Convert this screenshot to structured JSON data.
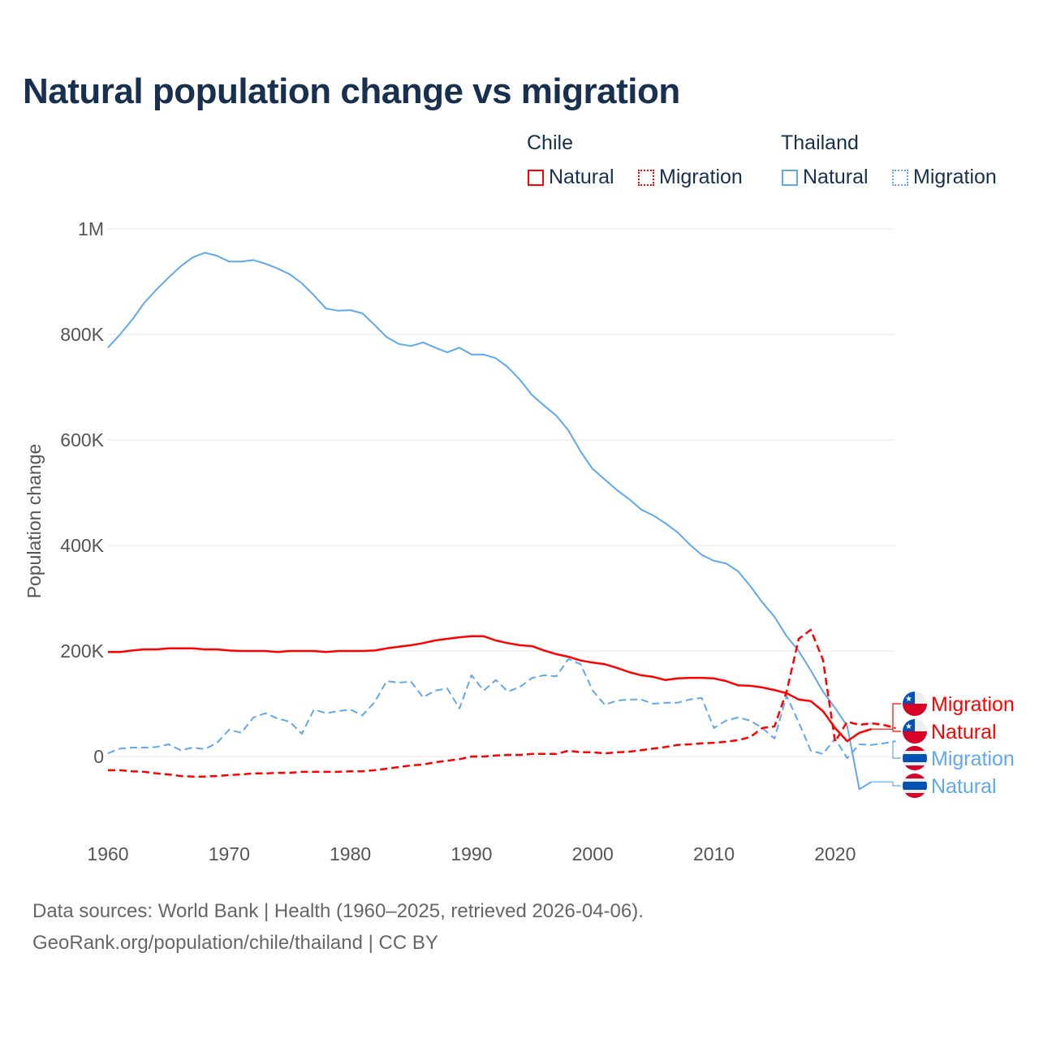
{
  "chart_data": {
    "type": "line",
    "title": "Natural population change vs migration",
    "ylabel": "Population change",
    "xlabel": "",
    "xlim": [
      1960,
      2025
    ],
    "ylim": [
      -100000,
      1000000
    ],
    "x_ticks": [
      "1960",
      "1970",
      "1980",
      "1990",
      "2000",
      "2010",
      "2020"
    ],
    "y_ticks": [
      {
        "v": 0,
        "label": "0"
      },
      {
        "v": 200000,
        "label": "200K"
      },
      {
        "v": 400000,
        "label": "400K"
      },
      {
        "v": 600000,
        "label": "600K"
      },
      {
        "v": 800000,
        "label": "800K"
      },
      {
        "v": 1000000,
        "label": "1M"
      }
    ],
    "grid": true,
    "legend": {
      "placement": "top-right",
      "groups": [
        {
          "name": "Chile",
          "items": [
            "Natural",
            "Migration"
          ]
        },
        {
          "name": "Thailand",
          "items": [
            "Natural",
            "Migration"
          ]
        }
      ]
    },
    "colors": {
      "Chile": "#ff0000",
      "Thailand": "#5fa8ee"
    },
    "start_year": 1960,
    "series": [
      {
        "name": "Thailand Natural",
        "country": "Thailand",
        "kind": "Natural",
        "label": "Natural",
        "values": [
          775000,
          800000,
          828000,
          860000,
          885000,
          908000,
          929000,
          946000,
          955000,
          949000,
          938000,
          938000,
          941000,
          934000,
          925000,
          914000,
          897000,
          874000,
          849000,
          845000,
          846000,
          840000,
          818000,
          795000,
          782000,
          778000,
          785000,
          775000,
          766000,
          775000,
          762000,
          762000,
          755000,
          738000,
          714000,
          685000,
          665000,
          646000,
          618000,
          578000,
          545000,
          525000,
          505000,
          488000,
          468000,
          457000,
          442000,
          425000,
          402000,
          382000,
          371000,
          366000,
          351000,
          323000,
          292000,
          265000,
          228000,
          200000,
          163000,
          123000,
          92000,
          58000,
          -62000,
          -48000
        ]
      },
      {
        "name": "Thailand Migration",
        "country": "Thailand",
        "kind": "Migration",
        "label": "Migration",
        "values": [
          6000,
          15000,
          17000,
          17000,
          18000,
          23000,
          12000,
          17000,
          14000,
          26000,
          51000,
          45000,
          74000,
          82000,
          72000,
          66000,
          43000,
          89000,
          82000,
          86000,
          89000,
          78000,
          103000,
          143000,
          140000,
          142000,
          112000,
          125000,
          129000,
          91000,
          154000,
          125000,
          145000,
          123000,
          132000,
          149000,
          154000,
          152000,
          185000,
          175000,
          125000,
          98000,
          106000,
          108000,
          108000,
          100000,
          102000,
          102000,
          108000,
          111000,
          54000,
          68000,
          74000,
          68000,
          54000,
          34000,
          115000,
          65000,
          11000,
          5000,
          34000,
          -3000,
          23000,
          22000,
          25000,
          29000
        ]
      },
      {
        "name": "Chile Natural",
        "country": "Chile",
        "kind": "Natural",
        "label": "Natural",
        "values": [
          198000,
          198000,
          201000,
          203000,
          203000,
          205000,
          205000,
          205000,
          203000,
          203000,
          201000,
          200000,
          200000,
          200000,
          198000,
          200000,
          200000,
          200000,
          198000,
          200000,
          200000,
          200000,
          201000,
          205000,
          208000,
          211000,
          215000,
          220000,
          223000,
          226000,
          228000,
          228000,
          220000,
          215000,
          211000,
          209000,
          201000,
          194000,
          189000,
          182000,
          178000,
          175000,
          168000,
          160000,
          154000,
          151000,
          145000,
          148000,
          149000,
          149000,
          148000,
          143000,
          135000,
          134000,
          131000,
          126000,
          120000,
          108000,
          105000,
          86000,
          54000,
          29000,
          45000,
          52000
        ]
      },
      {
        "name": "Chile Migration",
        "country": "Chile",
        "kind": "Migration",
        "label": "Migration",
        "values": [
          -26000,
          -26000,
          -28000,
          -29000,
          -32000,
          -34000,
          -37000,
          -38000,
          -38000,
          -37000,
          -35000,
          -34000,
          -32000,
          -32000,
          -31000,
          -31000,
          -29000,
          -29000,
          -29000,
          -29000,
          -28000,
          -28000,
          -26000,
          -23000,
          -20000,
          -17000,
          -15000,
          -11000,
          -8000,
          -5000,
          0,
          0,
          2000,
          3000,
          3000,
          5000,
          5000,
          5000,
          11000,
          8000,
          8000,
          6000,
          8000,
          9000,
          12000,
          15000,
          18000,
          22000,
          23000,
          25000,
          26000,
          28000,
          31000,
          37000,
          54000,
          57000,
          123000,
          223000,
          240000,
          183000,
          28000,
          66000,
          60000,
          63000,
          60000,
          54000
        ]
      }
    ]
  },
  "legend_labels": {
    "chile": "Chile",
    "thailand": "Thailand",
    "natural": "Natural",
    "migration": "Migration"
  },
  "footer": {
    "line1": "Data sources: World Bank | Health (1960–2025, retrieved 2026-04-06).",
    "line2": "GeoRank.org/population/chile/thailand | CC BY"
  }
}
